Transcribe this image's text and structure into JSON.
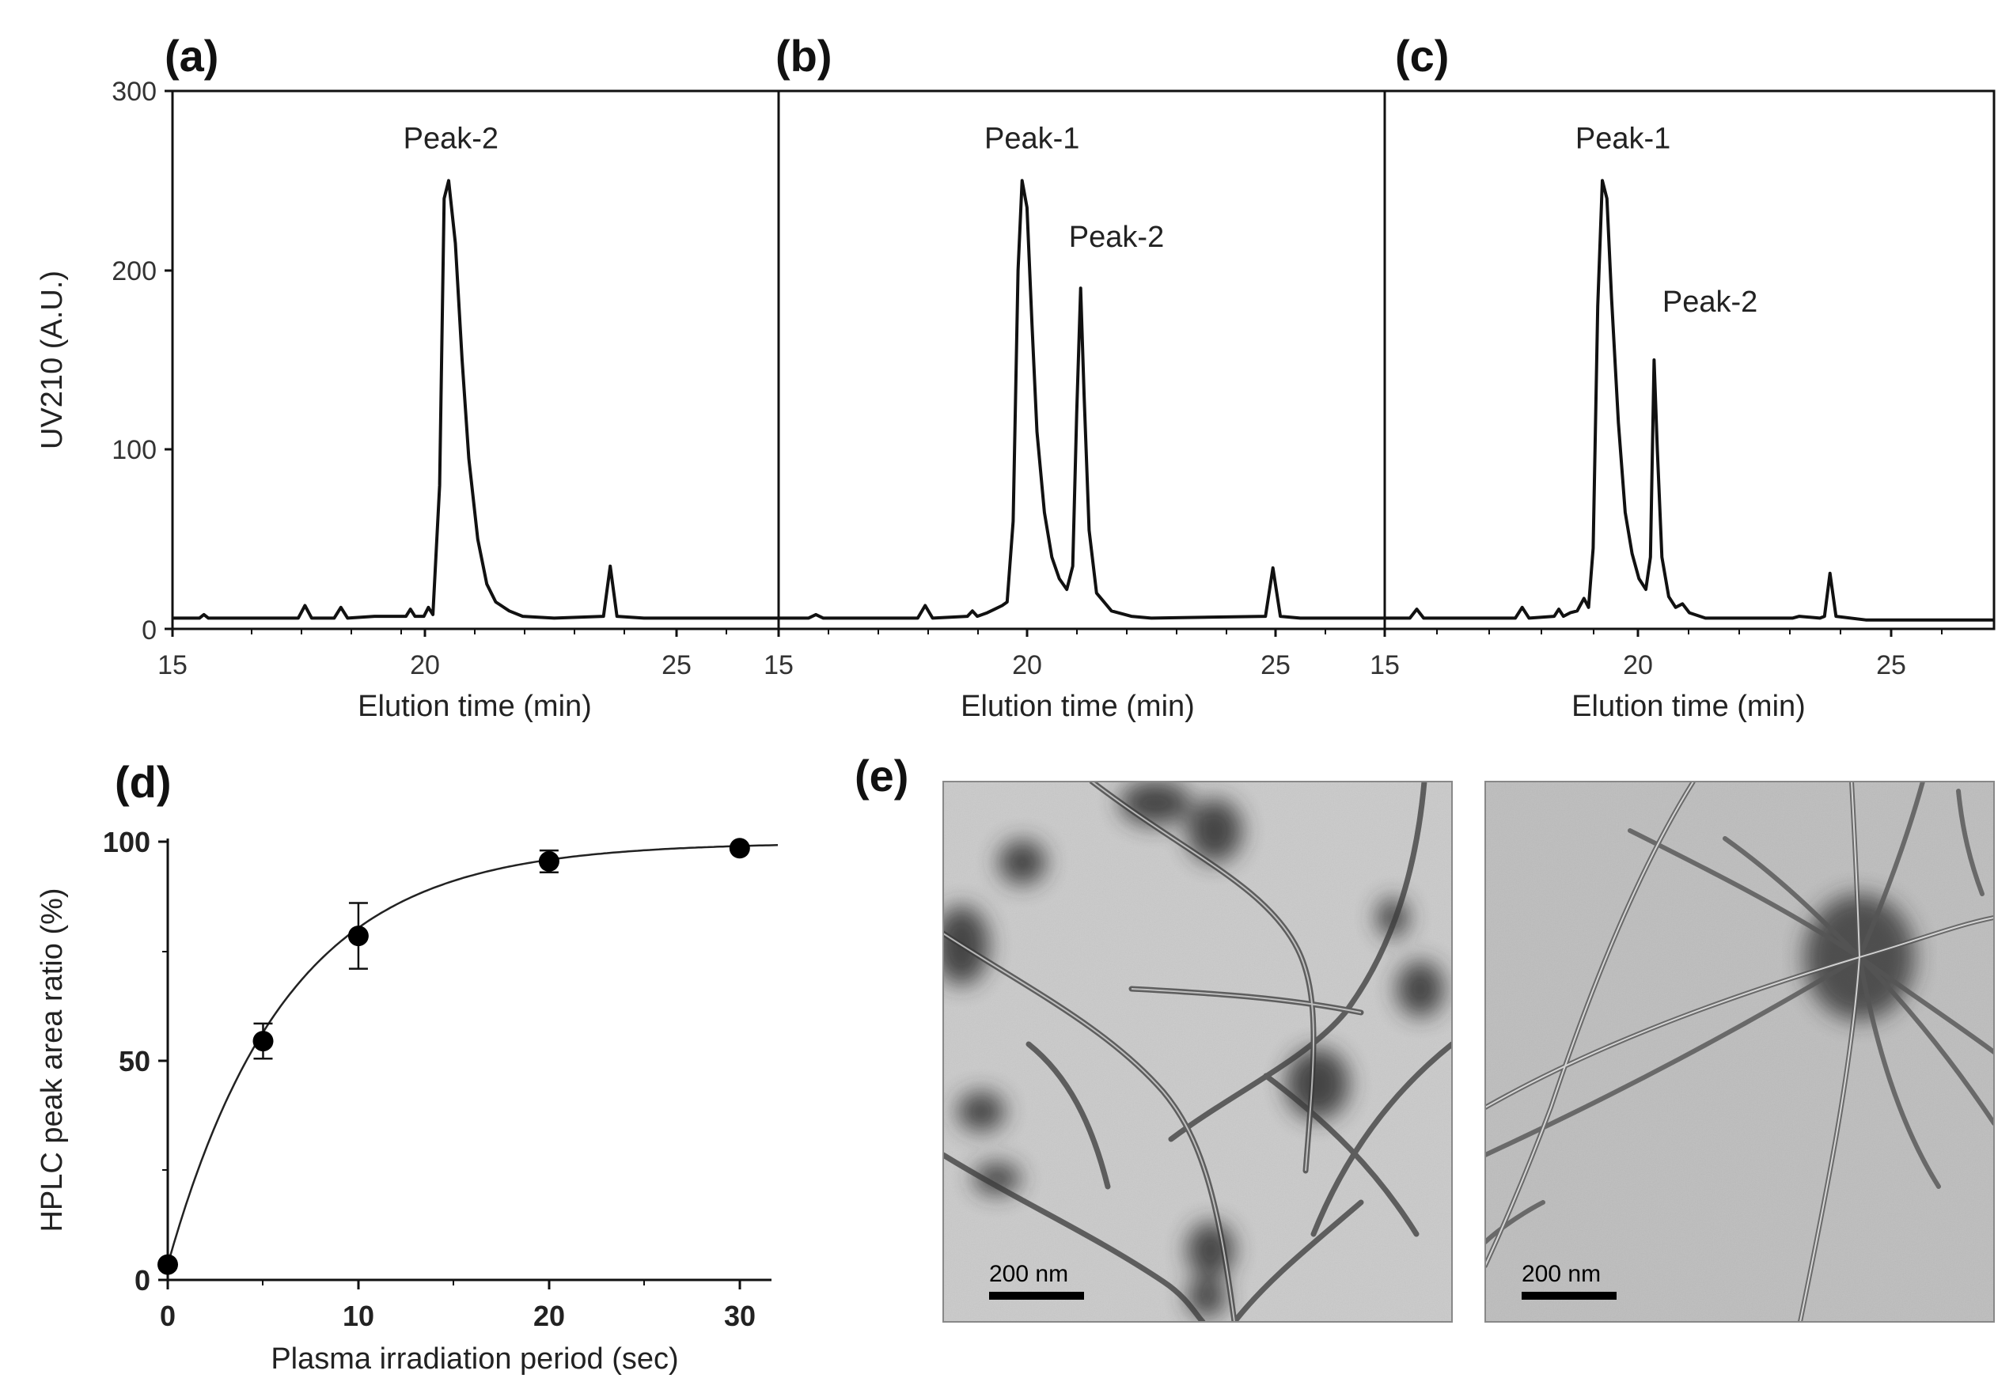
{
  "colors": {
    "line": "#111111",
    "axis": "#111111",
    "micrograph_bg": "#c9c9c9",
    "stain": "#2a2a2a"
  },
  "chart_data": [
    {
      "id": "a",
      "panel_label": "(a)",
      "type": "line",
      "xlabel": "Elution time (min)",
      "ylabel": "UV210 (A.U.)",
      "xlim": [
        15,
        28.5
      ],
      "ylim": [
        0,
        300
      ],
      "xticks": [
        15,
        20,
        25
      ],
      "yticks": [
        0,
        100,
        200,
        300
      ],
      "annotations": [
        {
          "text": "Peak-2",
          "x": 21.2,
          "y": 268
        }
      ],
      "points": [
        [
          15,
          6
        ],
        [
          15.6,
          6
        ],
        [
          15.7,
          8
        ],
        [
          15.8,
          6
        ],
        [
          16.3,
          6
        ],
        [
          17.8,
          6
        ],
        [
          17.95,
          13
        ],
        [
          18.1,
          6
        ],
        [
          18.6,
          6
        ],
        [
          18.75,
          12
        ],
        [
          18.9,
          6
        ],
        [
          19.5,
          7
        ],
        [
          20.2,
          7
        ],
        [
          20.3,
          11
        ],
        [
          20.4,
          7
        ],
        [
          20.6,
          7
        ],
        [
          20.7,
          12
        ],
        [
          20.8,
          8
        ],
        [
          20.95,
          80
        ],
        [
          21.05,
          240
        ],
        [
          21.15,
          250
        ],
        [
          21.3,
          215
        ],
        [
          21.45,
          150
        ],
        [
          21.6,
          95
        ],
        [
          21.8,
          50
        ],
        [
          22,
          25
        ],
        [
          22.2,
          15
        ],
        [
          22.5,
          10
        ],
        [
          22.8,
          7
        ],
        [
          23.5,
          6
        ],
        [
          24.6,
          7
        ],
        [
          24.75,
          35
        ],
        [
          24.9,
          7
        ],
        [
          25.5,
          6
        ],
        [
          28.5,
          6
        ]
      ]
    },
    {
      "id": "b",
      "panel_label": "(b)",
      "type": "line",
      "xlabel": "Elution time (min)",
      "xlim": [
        15,
        27.2
      ],
      "ylim": [
        0,
        300
      ],
      "xticks": [
        15,
        20,
        25
      ],
      "annotations": [
        {
          "text": "Peak-1",
          "x": 20.1,
          "y": 268
        },
        {
          "text": "Peak-2",
          "x": 21.8,
          "y": 213
        }
      ],
      "points": [
        [
          15,
          6
        ],
        [
          15.6,
          6
        ],
        [
          15.75,
          8
        ],
        [
          15.9,
          6
        ],
        [
          17.8,
          6
        ],
        [
          17.95,
          13
        ],
        [
          18.1,
          6
        ],
        [
          18.8,
          7
        ],
        [
          18.9,
          10
        ],
        [
          19,
          7
        ],
        [
          19.2,
          9
        ],
        [
          19.35,
          11
        ],
        [
          19.5,
          13
        ],
        [
          19.6,
          15
        ],
        [
          19.72,
          60
        ],
        [
          19.82,
          200
        ],
        [
          19.9,
          250
        ],
        [
          20,
          235
        ],
        [
          20.1,
          170
        ],
        [
          20.2,
          110
        ],
        [
          20.35,
          65
        ],
        [
          20.5,
          40
        ],
        [
          20.65,
          28
        ],
        [
          20.8,
          22
        ],
        [
          20.92,
          35
        ],
        [
          21.0,
          120
        ],
        [
          21.08,
          190
        ],
        [
          21.15,
          130
        ],
        [
          21.25,
          55
        ],
        [
          21.4,
          20
        ],
        [
          21.7,
          10
        ],
        [
          22.1,
          7
        ],
        [
          22.5,
          6
        ],
        [
          24.8,
          7
        ],
        [
          24.95,
          34
        ],
        [
          25.1,
          7
        ],
        [
          25.5,
          6
        ],
        [
          27.2,
          6
        ]
      ]
    },
    {
      "id": "c",
      "panel_label": "(c)",
      "type": "line",
      "xlabel": "Elution time (min)",
      "xlim": [
        15,
        28.3
      ],
      "ylim": [
        0,
        300
      ],
      "xticks": [
        15,
        20,
        25
      ],
      "annotations": [
        {
          "text": "Peak-1",
          "x": 20.2,
          "y": 268
        },
        {
          "text": "Peak-2",
          "x": 22.1,
          "y": 177
        }
      ],
      "points": [
        [
          15,
          6
        ],
        [
          15.55,
          6
        ],
        [
          15.7,
          11
        ],
        [
          15.85,
          6
        ],
        [
          17.85,
          6
        ],
        [
          18,
          12
        ],
        [
          18.15,
          6
        ],
        [
          18.7,
          7
        ],
        [
          18.8,
          11
        ],
        [
          18.9,
          7
        ],
        [
          19.05,
          9
        ],
        [
          19.2,
          10
        ],
        [
          19.35,
          17
        ],
        [
          19.45,
          12
        ],
        [
          19.55,
          45
        ],
        [
          19.65,
          180
        ],
        [
          19.75,
          250
        ],
        [
          19.85,
          240
        ],
        [
          19.95,
          185
        ],
        [
          20.1,
          115
        ],
        [
          20.25,
          65
        ],
        [
          20.4,
          42
        ],
        [
          20.55,
          28
        ],
        [
          20.7,
          22
        ],
        [
          20.8,
          40
        ],
        [
          20.88,
          150
        ],
        [
          20.95,
          100
        ],
        [
          21.05,
          40
        ],
        [
          21.2,
          18
        ],
        [
          21.35,
          12
        ],
        [
          21.5,
          14
        ],
        [
          21.65,
          9
        ],
        [
          22,
          6
        ],
        [
          23.9,
          6
        ],
        [
          24.05,
          7
        ],
        [
          24.5,
          6
        ],
        [
          24.6,
          7
        ],
        [
          24.72,
          31
        ],
        [
          24.85,
          7
        ],
        [
          25.5,
          5
        ],
        [
          28.3,
          5
        ]
      ]
    },
    {
      "id": "d",
      "panel_label": "(d)",
      "type": "scatter",
      "xlabel": "Plasma irradiation period (sec)",
      "ylabel": "HPLC peak area ratio (%)",
      "xlim": [
        0,
        32
      ],
      "ylim": [
        0,
        100
      ],
      "xticks": [
        0,
        10,
        20,
        30
      ],
      "yticks": [
        0,
        50,
        100
      ],
      "points": [
        {
          "x": 0,
          "y": 3.5,
          "err": 0
        },
        {
          "x": 5,
          "y": 54.5,
          "err": 4
        },
        {
          "x": 10,
          "y": 78.5,
          "err": 7.5
        },
        {
          "x": 20,
          "y": 95.5,
          "err": 2.5
        },
        {
          "x": 30,
          "y": 98.5,
          "err": 0
        }
      ],
      "fit": {
        "y0": 3.5,
        "plateau": 99.8,
        "k": 0.16
      }
    }
  ],
  "panel_e": {
    "panel_label": "(e)",
    "images": [
      {
        "scale_bar_label": "200 nm"
      },
      {
        "scale_bar_label": "200 nm"
      }
    ]
  }
}
